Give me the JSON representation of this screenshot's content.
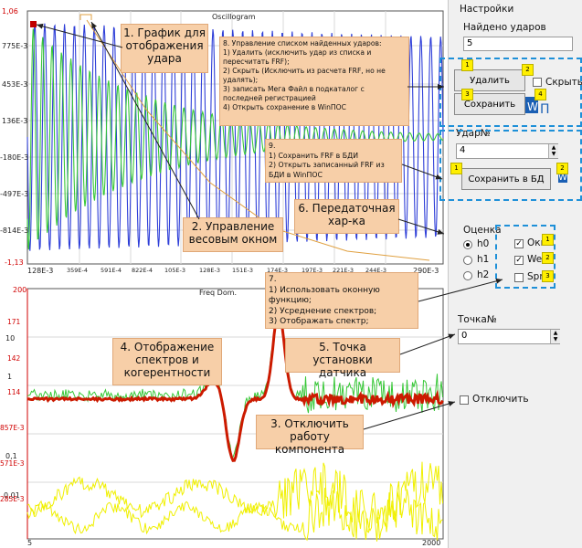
{
  "oscillogram": {
    "title": "Oscillogram",
    "y_top": "1,06",
    "y_ticks": [
      "775E-3",
      "453E-3",
      "136E-3",
      "-180E-3",
      "-497E-3",
      "-814E-3"
    ],
    "y_bottom": "-1,13",
    "x_ticks": [
      "128E-3",
      "359E-4",
      "591E-4",
      "822E-4",
      "105E-3",
      "128E-3",
      "151E-3",
      "174E-3",
      "197E-3",
      "221E-3",
      "244E-3",
      "290E-3"
    ]
  },
  "freq": {
    "title": "Freq Dom.",
    "left_top": "200",
    "left_ticks": [
      "10",
      "1",
      "0,1",
      "0,01"
    ],
    "right_ticks": [
      "171",
      "142",
      "114",
      "857E-3",
      "571E-3",
      "285E-3"
    ],
    "x_left": "5",
    "x_right": "2000"
  },
  "callouts": {
    "c1": "1. График для отображения удара",
    "c2": "2. Управление весовым окном",
    "c3": "3. Отключить работу компонента",
    "c4": "4. Отображение спектров и когерентности",
    "c5": "5. Точка установки датчика",
    "c6": "6. Передаточная хар-ка",
    "c7": "7.\n1) Использовать оконную функцию;\n2) Усреднение спектров;\n3) Отображать спектр;",
    "c8": "8. Управление списком найденных ударов:\n1) Удалить (исключить удар из списка и пересчитать FRF);\n2) Скрыть (Исключить из расчета FRF, но не удалять);\n3) записать Мега Файл в подкаталог с последней регистрацией\n4) Открыть сохранение в WinПОС",
    "c9": "9.\n1) Сохранить FRF в БДИ\n2) Открыть записанный FRF из БДИ в WinПОС"
  },
  "settings": {
    "header": "Настройки",
    "found_label": "Найдено ударов",
    "found_value": "5",
    "delete_button": "Удалить",
    "hide_label": "Скрыть",
    "save_button": "Сохранить",
    "hit_label": "Удар№",
    "hit_value": "4",
    "save_db_button": "Сохранить в БД",
    "estimate_label": "Оценка",
    "radios": [
      "h0",
      "h1",
      "h2"
    ],
    "checks": [
      "Окн",
      "Wei",
      "Spr"
    ],
    "point_label": "Точка№",
    "point_value": "0",
    "disable_label": "Отключить",
    "badges": [
      "1",
      "2",
      "3",
      "4",
      "1",
      "2",
      "1",
      "2",
      "3"
    ]
  },
  "colors": {
    "osc_blue": "#2f3fd8",
    "osc_green": "#38c838",
    "frf_red": "#cc1a00",
    "coh_yellow": "#f0f000",
    "callout_bg": "#f7cfa8",
    "dash_blue": "#1e90d8"
  }
}
